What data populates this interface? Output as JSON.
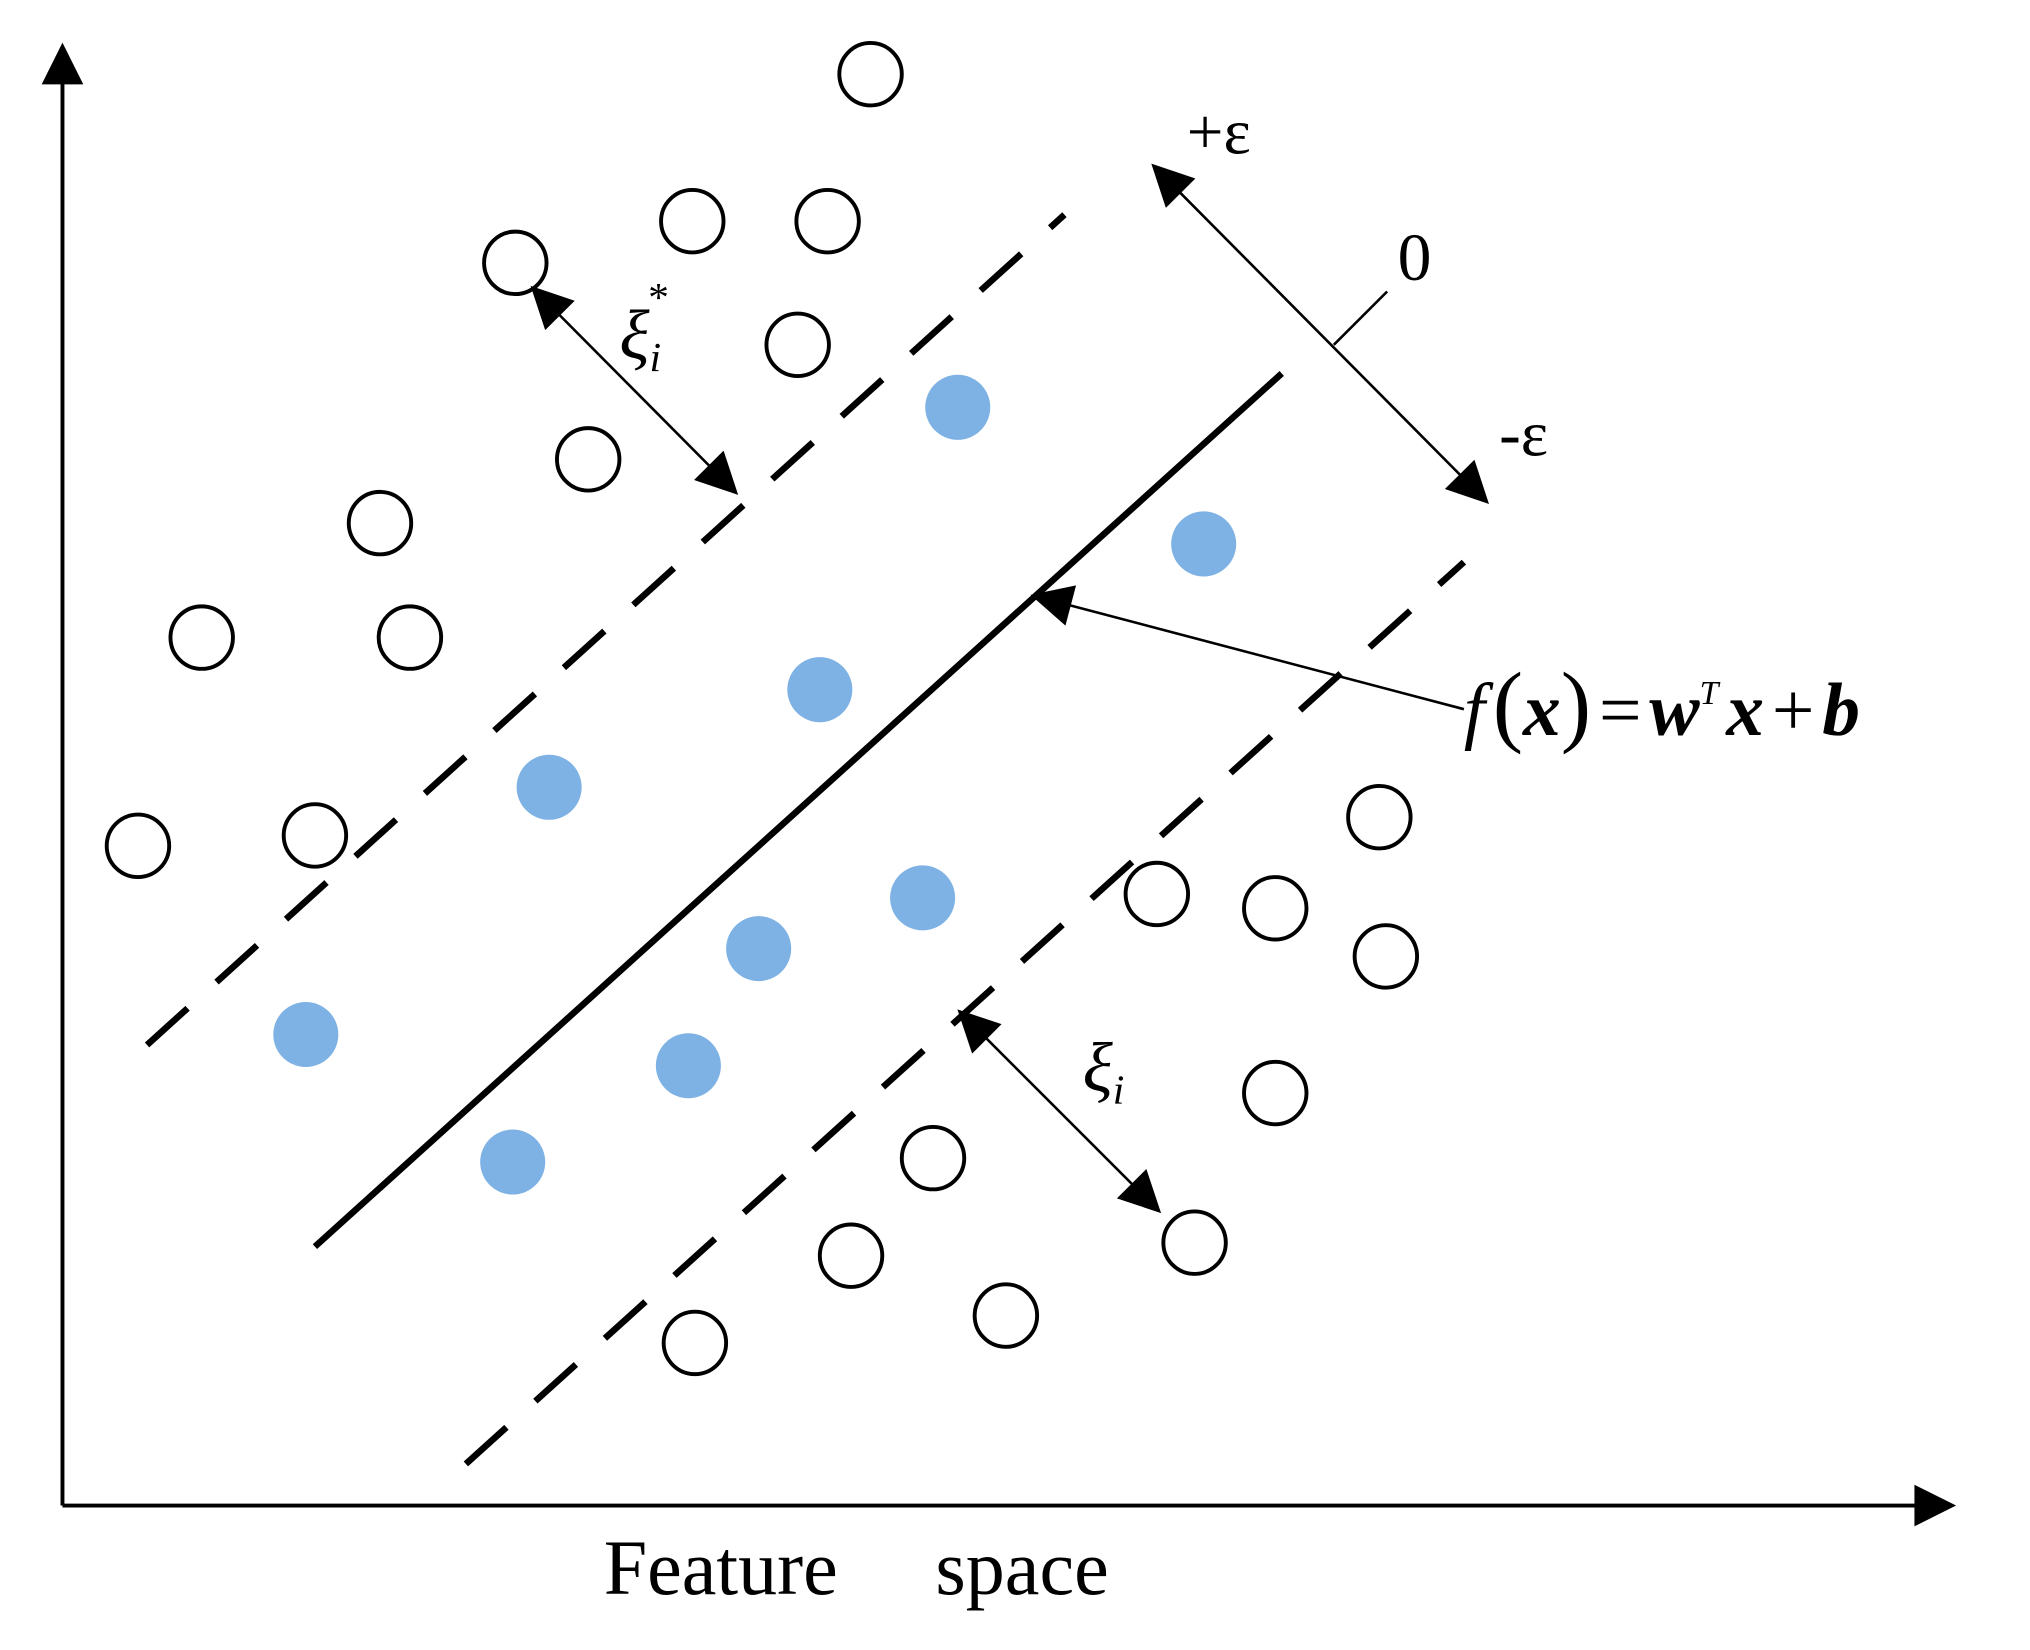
{
  "labels": {
    "plus_epsilon": "+ε",
    "minus_epsilon": "-ε",
    "zero": "0",
    "xi_star": {
      "symbol": "ξ",
      "sub": "i",
      "sup": "*"
    },
    "xi": {
      "symbol": "ξ",
      "sub": "i"
    },
    "formula": [
      "f",
      "(",
      "x",
      ")",
      "=",
      "w",
      "T",
      "x",
      "+",
      "b"
    ],
    "x_axis": "Feature space"
  }
}
